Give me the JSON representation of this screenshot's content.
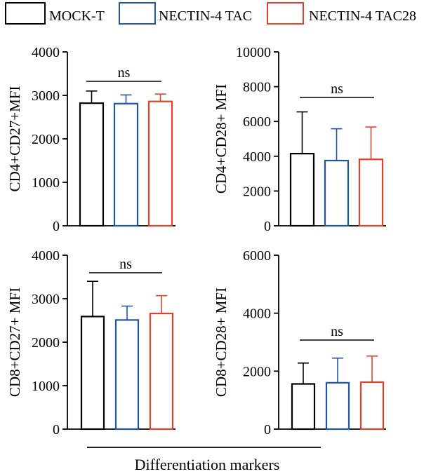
{
  "legend": {
    "items": [
      {
        "label": "MOCK-T",
        "color": "#000000"
      },
      {
        "label": "NECTIN-4 TAC",
        "color": "#2155a0"
      },
      {
        "label": "NECTIN-4 TAC28",
        "color": "#e0412b"
      }
    ]
  },
  "xlabel": "Differentiation markers",
  "chart_data": [
    {
      "type": "bar",
      "ylabel": "CD4+CD27+MFI",
      "ylim": [
        0,
        4000
      ],
      "yticks": [
        0,
        1000,
        2000,
        3000,
        4000
      ],
      "categories": [
        "MOCK-T",
        "NECTIN-4 TAC",
        "NECTIN-4 TAC28"
      ],
      "values": [
        2820,
        2810,
        2860
      ],
      "errors": [
        280,
        200,
        170
      ],
      "annotation": "ns"
    },
    {
      "type": "bar",
      "ylabel": "CD4+CD28+ MFI",
      "ylim": [
        0,
        10000
      ],
      "yticks": [
        0,
        2000,
        4000,
        6000,
        8000,
        10000
      ],
      "categories": [
        "MOCK-T",
        "NECTIN-4 TAC",
        "NECTIN-4 TAC28"
      ],
      "values": [
        4150,
        3750,
        3820
      ],
      "errors": [
        2400,
        1830,
        1860
      ],
      "annotation": "ns"
    },
    {
      "type": "bar",
      "ylabel": "CD8+CD27+ MFI",
      "ylim": [
        0,
        4000
      ],
      "yticks": [
        0,
        1000,
        2000,
        3000,
        4000
      ],
      "categories": [
        "MOCK-T",
        "NECTIN-4 TAC",
        "NECTIN-4 TAC28"
      ],
      "values": [
        2590,
        2510,
        2660
      ],
      "errors": [
        810,
        320,
        410
      ],
      "annotation": "ns"
    },
    {
      "type": "bar",
      "ylabel": "CD8+CD28+ MFI",
      "ylim": [
        0,
        6000
      ],
      "yticks": [
        0,
        2000,
        4000,
        6000
      ],
      "categories": [
        "MOCK-T",
        "NECTIN-4 TAC",
        "NECTIN-4 TAC28"
      ],
      "values": [
        1560,
        1600,
        1620
      ],
      "errors": [
        720,
        850,
        900
      ],
      "annotation": "ns"
    }
  ]
}
